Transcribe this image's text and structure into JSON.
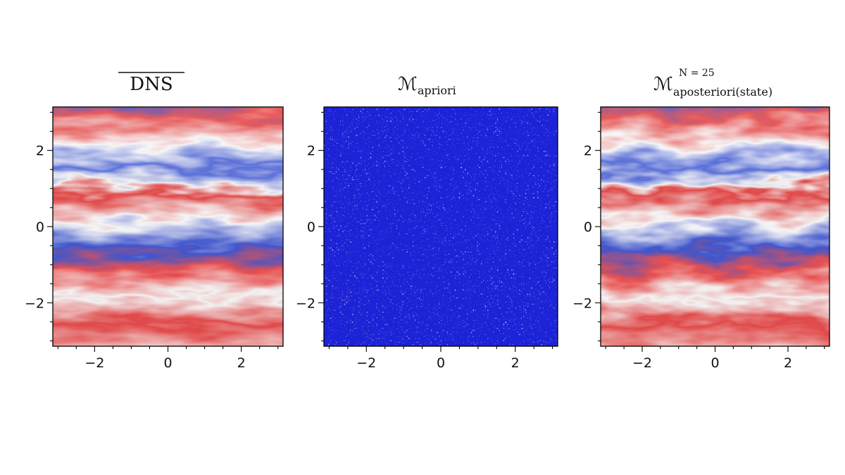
{
  "chart_data": [
    {
      "type": "heatmap",
      "title": "DNS",
      "title_overline": true,
      "x_ticks": [
        -2,
        0,
        2
      ],
      "y_ticks": [
        -2,
        0,
        2
      ],
      "x_tick_labels": [
        "−2",
        "0",
        "2"
      ],
      "y_tick_labels": [
        "−2",
        "0",
        "2"
      ],
      "xlim": [
        -3.14,
        3.14
      ],
      "ylim": [
        -3.14,
        3.14
      ],
      "colormap": "bwr",
      "pattern": "wavy-bands",
      "colors": {
        "negative": "#3b4cc0",
        "zero": "#f7f7f7",
        "positive": "#e03030"
      }
    },
    {
      "type": "heatmap",
      "title": "ℳ",
      "title_sub": "apriori",
      "x_ticks": [
        -2,
        0,
        2
      ],
      "y_ticks": [
        -2,
        0,
        2
      ],
      "x_tick_labels": [
        "−2",
        "0",
        "2"
      ],
      "y_tick_labels": [
        "−2",
        "0",
        "2"
      ],
      "xlim": [
        -3.14,
        3.14
      ],
      "ylim": [
        -3.14,
        3.14
      ],
      "colormap": "bwr",
      "pattern": "noisy",
      "colors": {
        "negative": "#1a22d8",
        "zero": "#f2f2ff",
        "positive": "#e03030"
      }
    },
    {
      "type": "heatmap",
      "title": "ℳ",
      "title_sub": "aposteriori(state)",
      "title_sup": "N = 25",
      "x_ticks": [
        -2,
        0,
        2
      ],
      "y_ticks": [
        -2,
        0,
        2
      ],
      "x_tick_labels": [
        "−2",
        "0",
        "2"
      ],
      "y_tick_labels": [
        "−2",
        "0",
        "2"
      ],
      "xlim": [
        -3.14,
        3.14
      ],
      "ylim": [
        -3.14,
        3.14
      ],
      "colormap": "bwr",
      "pattern": "wavy-bands",
      "colors": {
        "negative": "#3b4cc0",
        "zero": "#f7f7f7",
        "positive": "#e03030"
      }
    }
  ]
}
